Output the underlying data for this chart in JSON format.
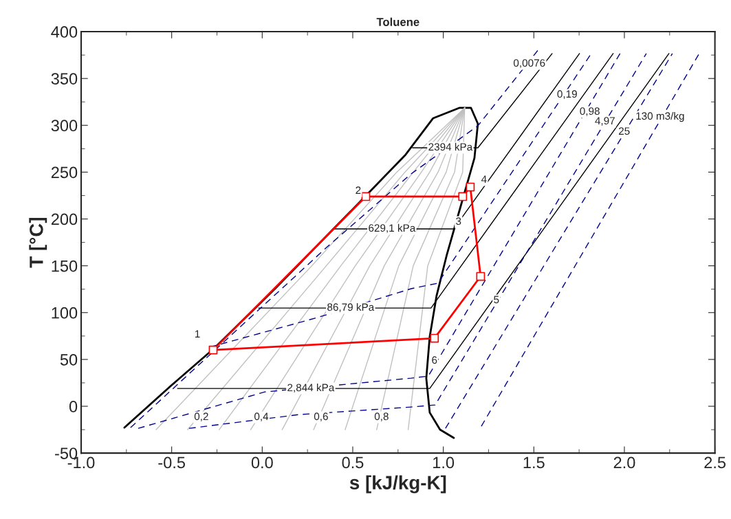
{
  "chart_data": {
    "type": "line",
    "title": "Toluene",
    "xlabel": "s [kJ/kg-K]",
    "ylabel": "T [°C]",
    "xlim": [
      -1.0,
      2.5
    ],
    "ylim": [
      -50,
      400
    ],
    "xticks": [
      {
        "value": -1,
        "label": "-1.0"
      },
      -0.5,
      {
        "value": 0,
        "label": "0.0"
      },
      0.5,
      {
        "value": 1,
        "label": "1.0"
      },
      1.5,
      {
        "value": 2,
        "label": "2.0"
      },
      2.5
    ],
    "yticks": [
      -50,
      0,
      50,
      100,
      150,
      200,
      250,
      300,
      350,
      400
    ],
    "grid": false,
    "legend": false,
    "series": [
      {
        "color": "#000000",
        "line_style": "solid",
        "x": [
          -0.761,
          -0.499,
          -0.271,
          0.071,
          0.564,
          0.792,
          0.944,
          1.088,
          1.153,
          1.191,
          1.172,
          1.096,
          1.02,
          0.963,
          0.925,
          0.906,
          0.925,
          0.982,
          1.058
        ],
        "values": [
          -22.8,
          22.7,
          60.9,
          125.5,
          223.1,
          268.7,
          307.6,
          318.6,
          318.6,
          301.7,
          265.0,
          213.6,
          162.2,
          118.1,
          74.1,
          30.0,
          -6.7,
          -25.0,
          -33.8
        ]
      },
      {
        "color": "#c0c0c0",
        "line_style": "solid",
        "x": [
          -0.586,
          0.274,
          0.743,
          1.118
        ],
        "values": [
          -25,
          150,
          250,
          318.6
        ]
      },
      {
        "color": "#c0c0c0",
        "line_style": "solid",
        "x": [
          -0.412,
          0.354,
          0.788,
          1.118
        ],
        "values": [
          -25,
          150,
          250,
          318.6
        ]
      },
      {
        "color": "#c0c0c0",
        "line_style": "solid",
        "x": [
          -0.238,
          0.434,
          0.834,
          1.118
        ],
        "values": [
          -25,
          150,
          250,
          318.6
        ]
      },
      {
        "color": "#c0c0c0",
        "line_style": "solid",
        "x": [
          -0.064,
          0.514,
          0.879,
          1.118
        ],
        "values": [
          -25,
          150,
          250,
          318.6
        ]
      },
      {
        "color": "#c0c0c0",
        "line_style": "solid",
        "x": [
          0.11,
          0.594,
          0.925,
          1.118
        ],
        "values": [
          -25,
          150,
          250,
          318.6
        ]
      },
      {
        "color": "#c0c0c0",
        "line_style": "solid",
        "x": [
          0.284,
          0.674,
          0.971,
          1.118
        ],
        "values": [
          -25,
          150,
          250,
          318.6
        ]
      },
      {
        "color": "#c0c0c0",
        "line_style": "solid",
        "x": [
          0.458,
          0.754,
          1.016,
          1.118
        ],
        "values": [
          -25,
          150,
          250,
          318.6
        ]
      },
      {
        "color": "#c0c0c0",
        "line_style": "solid",
        "x": [
          0.632,
          0.834,
          1.062,
          1.118
        ],
        "values": [
          -25,
          150,
          250,
          318.6
        ]
      },
      {
        "color": "#c0c0c0",
        "line_style": "solid",
        "x": [
          0.806,
          0.914,
          1.107,
          1.118
        ],
        "values": [
          -25,
          150,
          250,
          318.6
        ]
      },
      {
        "color": "#000000",
        "line_style": "solid",
        "x": [
          0.83,
          1.191,
          1.601
        ],
        "values": [
          276.0,
          276.0,
          376.6
        ]
      },
      {
        "color": "#000000",
        "line_style": "solid",
        "x": [
          0.393,
          1.058,
          1.752
        ],
        "values": [
          189.4,
          189.4,
          376.6
        ]
      },
      {
        "color": "#000000",
        "line_style": "solid",
        "x": [
          -0.02,
          0.932,
          1.938
        ],
        "values": [
          104.9,
          104.9,
          376.6
        ]
      },
      {
        "color": "#000000",
        "line_style": "solid",
        "x": [
          -0.468,
          0.925,
          2.246
        ],
        "values": [
          19.0,
          19.0,
          376.6
        ]
      },
      {
        "color": "#00008b",
        "line_style": "dashed",
        "x": [
          -0.727,
          0.355,
          0.822,
          1.191,
          1.532
        ],
        "values": [
          -22.8,
          169.5,
          248.1,
          299.5,
          382.5
        ]
      },
      {
        "color": "#00008b",
        "line_style": "dashed",
        "x": [
          -0.29,
          0.302,
          0.822,
          0.97,
          1.817
        ],
        "values": [
          63.1,
          94.6,
          125.5,
          131.4,
          376.6
        ]
      },
      {
        "color": "#00008b",
        "line_style": "dashed",
        "x": [
          -0.685,
          0.014,
          0.822,
          0.917,
          1.976
        ],
        "values": [
          -23.6,
          15.3,
          30.0,
          32.2,
          376.6
        ]
      },
      {
        "color": "#00008b",
        "line_style": "dashed",
        "x": [
          -0.404,
          0.203,
          0.822,
          0.955,
          2.121
        ],
        "values": [
          -23.6,
          -8.9,
          -0.8,
          1.4,
          376.6
        ]
      },
      {
        "color": "#00008b",
        "line_style": "dashed",
        "x": [
          1.012,
          2.265
        ],
        "values": [
          -23.6,
          376.6
        ]
      },
      {
        "color": "#00008b",
        "line_style": "dashed",
        "x": [
          1.21,
          2.413
        ],
        "values": [
          -21.4,
          376.6
        ]
      },
      {
        "color": "#ff0000",
        "line_style": "solid",
        "marker": "square",
        "x": [
          -0.271,
          0.572,
          1.107,
          1.149,
          1.206,
          0.951
        ],
        "values": [
          60.1,
          223.9,
          223.9,
          234.1,
          138.7,
          72.6
        ]
      },
      {
        "color": "#ff0000",
        "line_style": "solid",
        "x": [
          0.951,
          -0.271
        ],
        "values": [
          72.6,
          60.1
        ]
      }
    ],
    "annotations": [
      {
        "text": "1",
        "x": -0.358,
        "y": 76.3
      },
      {
        "text": "2",
        "x": 0.53,
        "y": 229.7
      },
      {
        "text": "3",
        "x": 1.084,
        "y": 196.7
      },
      {
        "text": "4",
        "x": 1.225,
        "y": 241.5
      },
      {
        "text": "5",
        "x": 1.293,
        "y": 113.0
      },
      {
        "text": "6",
        "x": 0.951,
        "y": 48.4
      },
      {
        "text": "2394 kPa",
        "x": 1.039,
        "y": 276.0
      },
      {
        "text": "629,1 kPa",
        "x": 0.716,
        "y": 189.4
      },
      {
        "text": "86,79 kPa",
        "x": 0.488,
        "y": 104.9
      },
      {
        "text": "2,844 kPa",
        "x": 0.268,
        "y": 19.0
      },
      {
        "text": "0,2",
        "x": -0.336,
        "y": -11.8
      },
      {
        "text": "0,4",
        "x": -0.005,
        "y": -11.8
      },
      {
        "text": "0,6",
        "x": 0.325,
        "y": -11.8
      },
      {
        "text": "0,8",
        "x": 0.659,
        "y": -11.8
      },
      {
        "text": "0,0076",
        "x": 1.475,
        "y": 365.6
      },
      {
        "text": "0,19",
        "x": 1.684,
        "y": 332.5
      },
      {
        "text": "0,98",
        "x": 1.809,
        "y": 314.2
      },
      {
        "text": "4,97",
        "x": 1.893,
        "y": 303.9
      },
      {
        "text": "25",
        "x": 1.999,
        "y": 292.9
      },
      {
        "text": "130 m3/kg",
        "x": 2.197,
        "y": 309.0
      }
    ]
  }
}
